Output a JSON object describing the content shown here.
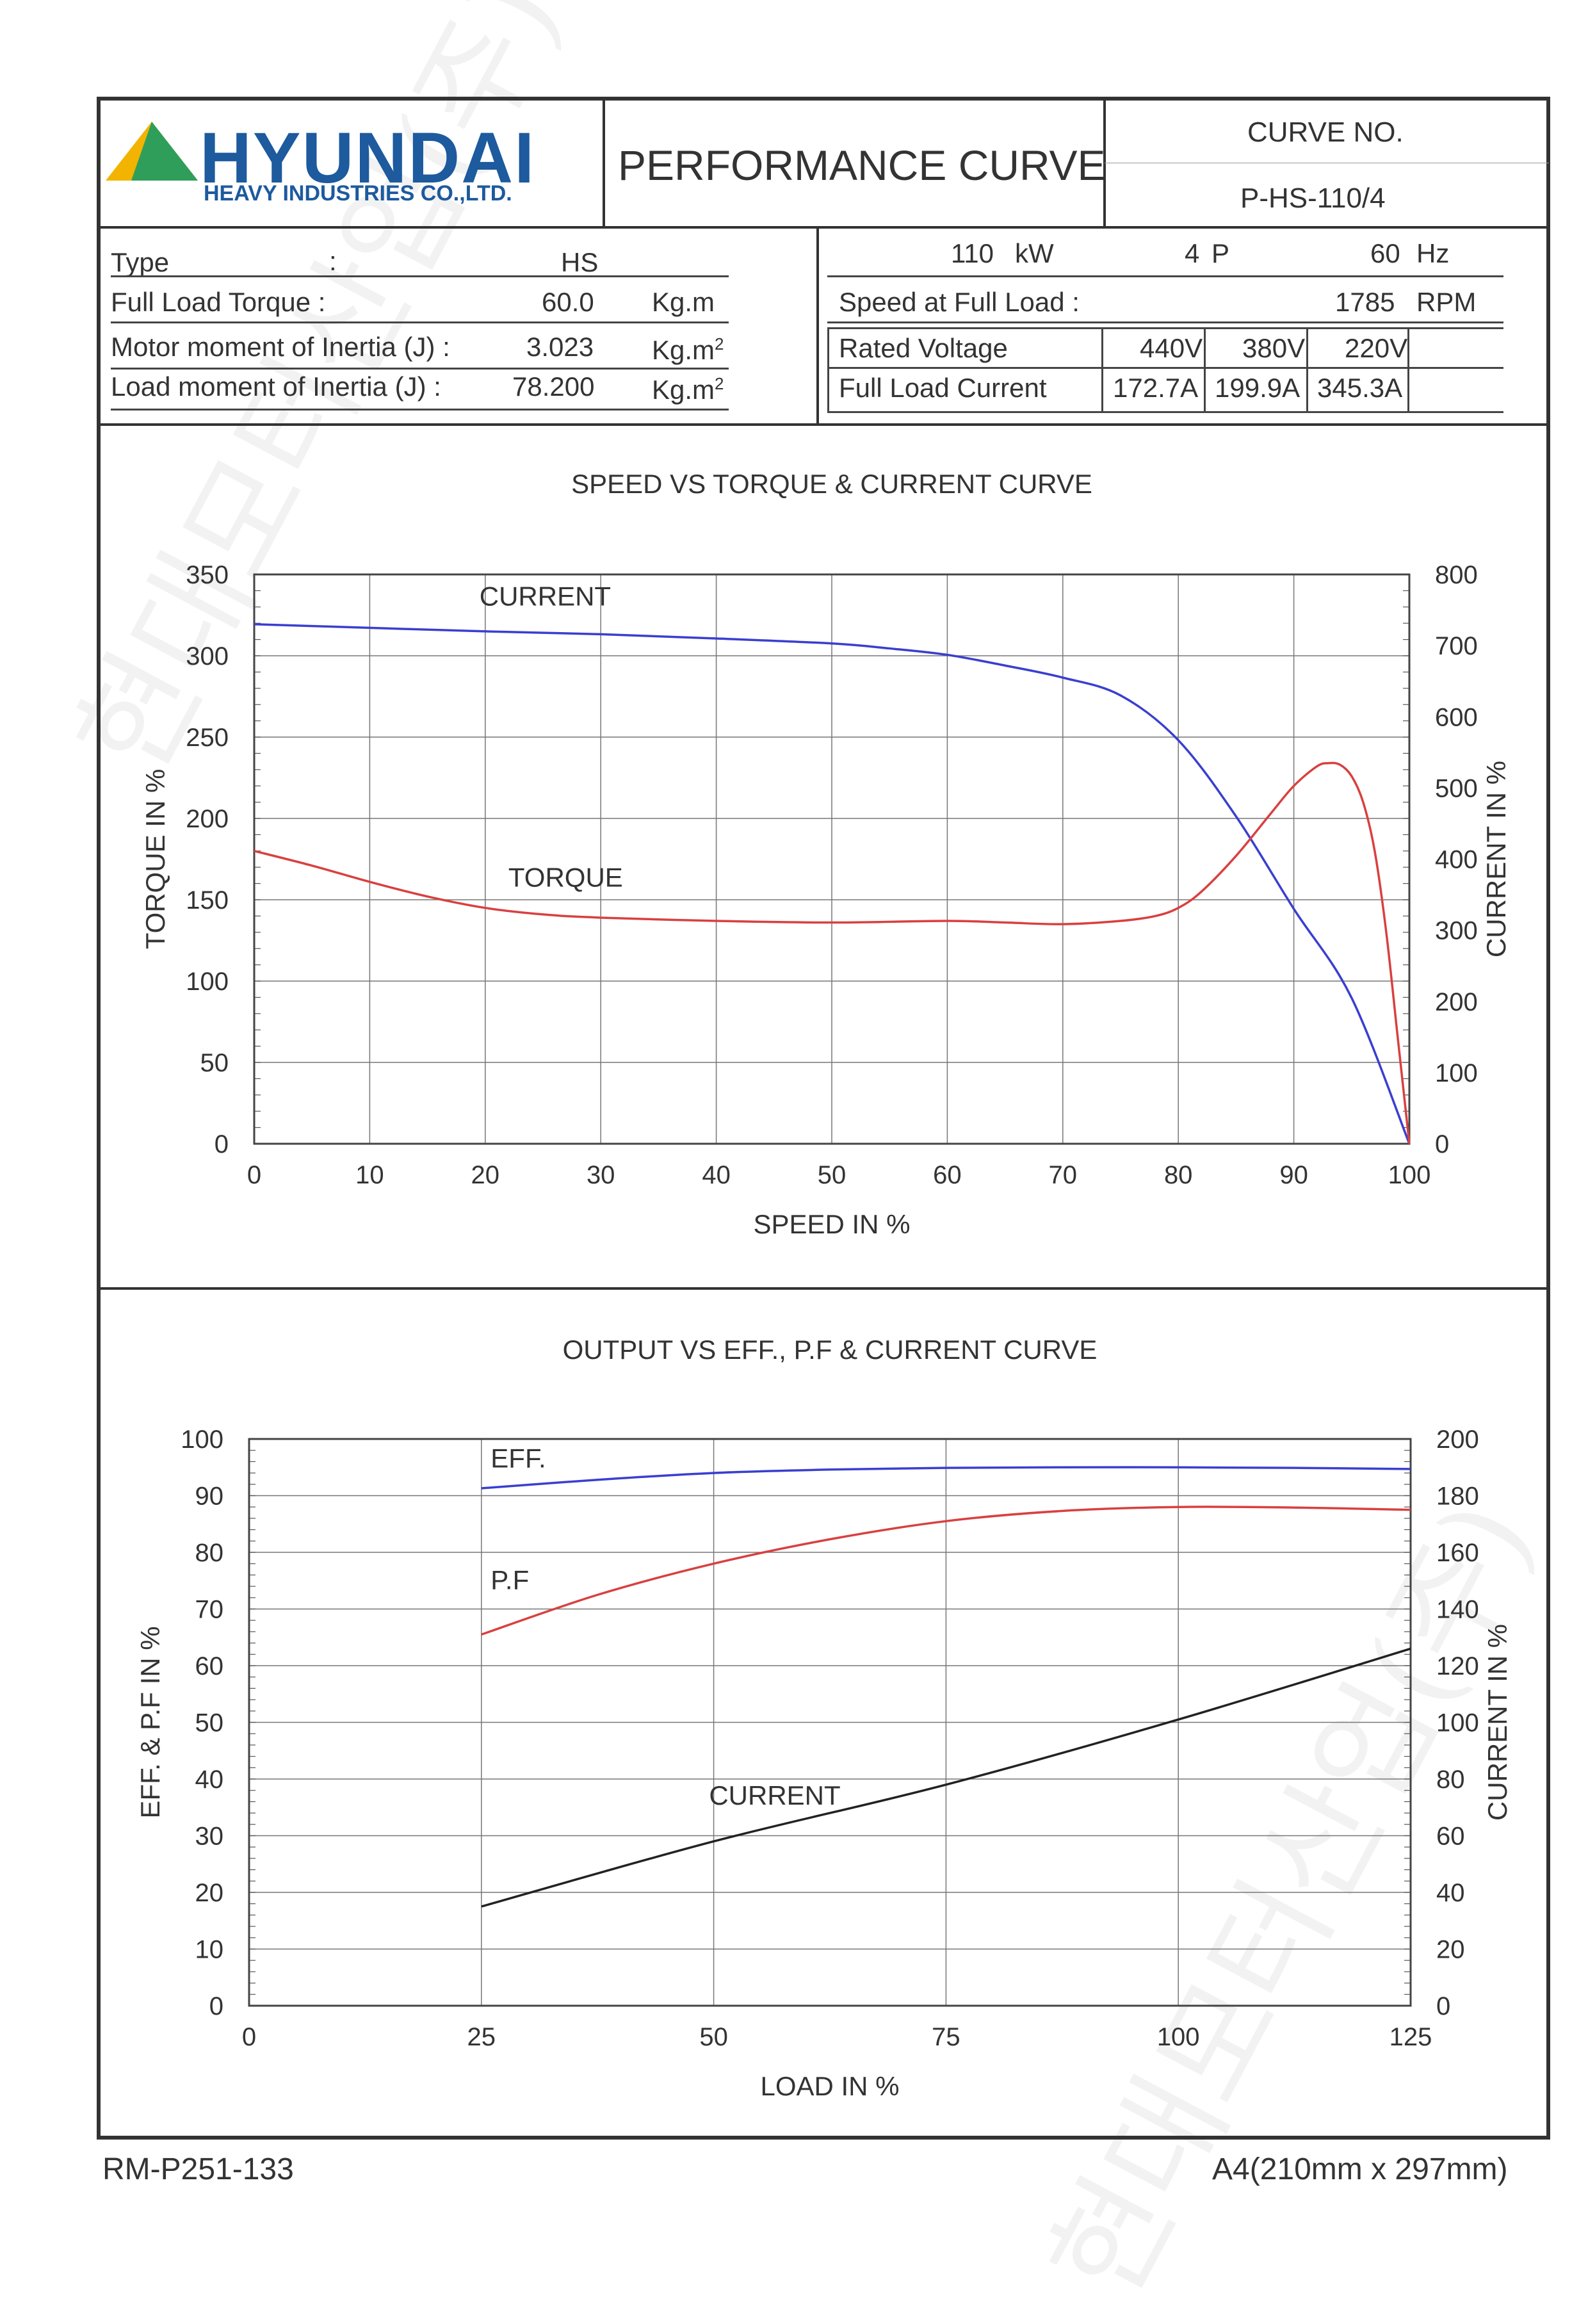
{
  "header": {
    "company": "HYUNDAI",
    "company_sub": "HEAVY INDUSTRIES CO.,LTD.",
    "title": "PERFORMANCE CURVE",
    "curve_no_label": "CURVE NO.",
    "curve_no": "P-HS-110/4"
  },
  "specs_left": {
    "type_label": "Type",
    "type_colon": ":",
    "type_value": "HS",
    "torque_label": "Full Load Torque :",
    "torque_value": "60.0",
    "torque_unit": "Kg.m",
    "motor_inertia_label": "Motor moment of Inertia (J) :",
    "motor_inertia_value": "3.023",
    "load_inertia_label": "Load moment of Inertia (J) :",
    "load_inertia_value": "78.200",
    "inertia_unit": "Kg.m",
    "inertia_unit_sup": "2"
  },
  "specs_right": {
    "power": "110",
    "power_unit": "kW",
    "poles": "4",
    "poles_unit": "P",
    "freq": "60",
    "freq_unit": "Hz",
    "speed_label": "Speed at Full Load :",
    "speed_value": "1785",
    "speed_unit": "RPM",
    "voltage_label": "Rated Voltage",
    "voltages": [
      "440V",
      "380V",
      "220V"
    ],
    "current_label": "Full Load Current",
    "currents": [
      "172.7A",
      "199.9A",
      "345.3A"
    ]
  },
  "footer": {
    "left": "RM-P251-133",
    "right": "A4(210mm x 297mm)"
  },
  "watermark": "현대모터산업(주)",
  "colors": {
    "blue": "#3a3fcf",
    "red": "#d94040",
    "black": "#222222"
  },
  "chart_data": [
    {
      "type": "line",
      "title": "SPEED VS TORQUE & CURRENT CURVE",
      "xlabel": "SPEED IN %",
      "ylabel": "TORQUE IN %",
      "ylabel_right": "CURRENT IN %",
      "xlim": [
        0,
        100
      ],
      "ylim": [
        0,
        350
      ],
      "ylim_right": [
        0,
        800
      ],
      "xticks": [
        "0",
        "10",
        "20",
        "30",
        "40",
        "50",
        "60",
        "70",
        "80",
        "90",
        "100"
      ],
      "yticks": [
        "0",
        "50",
        "100",
        "150",
        "200",
        "250",
        "300",
        "350"
      ],
      "yticks_right": [
        "0",
        "100",
        "200",
        "300",
        "400",
        "500",
        "600",
        "700",
        "800"
      ],
      "grid": true,
      "series": [
        {
          "name": "CURRENT",
          "axis": "right",
          "color": "#3a3fcf",
          "x": [
            0,
            10,
            20,
            30,
            40,
            50,
            55,
            60,
            65,
            70,
            75,
            80,
            85,
            90,
            95,
            100
          ],
          "y": [
            730,
            725,
            720,
            716,
            710,
            703,
            696,
            687,
            672,
            655,
            630,
            567,
            460,
            330,
            205,
            0
          ]
        },
        {
          "name": "TORQUE",
          "axis": "left",
          "color": "#d94040",
          "x": [
            0,
            5,
            10,
            15,
            20,
            25,
            30,
            40,
            50,
            60,
            65,
            70,
            75,
            78,
            80,
            82,
            85,
            88,
            90,
            92,
            93,
            94,
            95,
            96,
            97,
            98,
            99,
            100
          ],
          "y": [
            180,
            171,
            161,
            152,
            145,
            141,
            139,
            137,
            136,
            137,
            136,
            135,
            137,
            140,
            145,
            155,
            177,
            203,
            220,
            232,
            234,
            233,
            226,
            210,
            180,
            130,
            65,
            0
          ]
        }
      ],
      "annotations": [
        "CURRENT",
        "TORQUE"
      ]
    },
    {
      "type": "line",
      "title": "OUTPUT VS EFF., P.F & CURRENT CURVE",
      "xlabel": "LOAD IN %",
      "ylabel": "EFF. & P.F IN %",
      "ylabel_right": "CURRENT IN %",
      "xlim": [
        0,
        125
      ],
      "ylim": [
        0,
        100
      ],
      "ylim_right": [
        0,
        200
      ],
      "xticks": [
        "0",
        "25",
        "50",
        "75",
        "100",
        "125"
      ],
      "yticks": [
        "0",
        "10",
        "20",
        "30",
        "40",
        "50",
        "60",
        "70",
        "80",
        "90",
        "100"
      ],
      "yticks_right": [
        "0",
        "20",
        "40",
        "60",
        "80",
        "100",
        "120",
        "140",
        "160",
        "180",
        "200"
      ],
      "grid": true,
      "series": [
        {
          "name": "EFF.",
          "axis": "left",
          "color": "#3a3fcf",
          "x": [
            25,
            37.5,
            50,
            62.5,
            75,
            87.5,
            100,
            112.5,
            125
          ],
          "y": [
            91.3,
            92.8,
            94.0,
            94.6,
            94.9,
            95.0,
            95.0,
            94.9,
            94.7
          ]
        },
        {
          "name": "P.F",
          "axis": "left",
          "color": "#d94040",
          "x": [
            25,
            37.5,
            50,
            62.5,
            75,
            87.5,
            100,
            112.5,
            125
          ],
          "y": [
            65.5,
            72.5,
            78.0,
            82.3,
            85.5,
            87.3,
            88.0,
            87.9,
            87.5
          ]
        },
        {
          "name": "CURRENT",
          "axis": "right",
          "color": "#222222",
          "x": [
            25,
            50,
            75,
            100,
            125
          ],
          "y": [
            35,
            58,
            78,
            101,
            126
          ]
        }
      ],
      "annotations": [
        "EFF.",
        "P.F",
        "CURRENT"
      ]
    }
  ]
}
